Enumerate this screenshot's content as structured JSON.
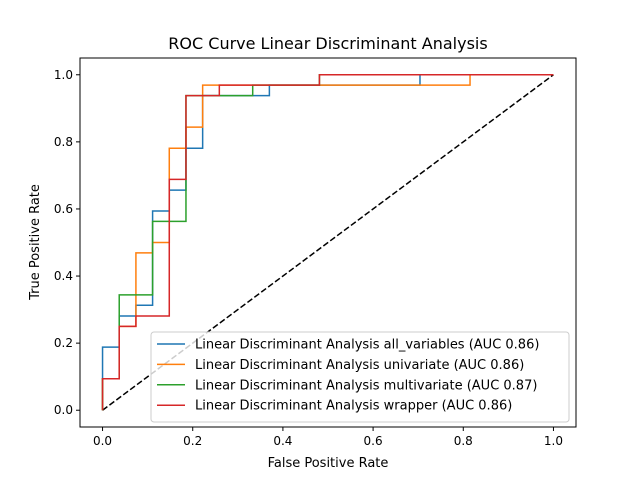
{
  "chart_data": {
    "type": "line",
    "title": "ROC Curve Linear Discriminant Analysis",
    "xlabel": "False Positive Rate",
    "ylabel": "True Positive Rate",
    "xlim": [
      -0.05,
      1.05
    ],
    "ylim": [
      -0.05,
      1.05
    ],
    "xticks": [
      "0.0",
      "0.2",
      "0.4",
      "0.6",
      "0.8",
      "1.0"
    ],
    "yticks": [
      "0.0",
      "0.2",
      "0.4",
      "0.6",
      "0.8",
      "1.0"
    ],
    "grid": false,
    "legend_position": "lower-right",
    "series": [
      {
        "name": "Linear Discriminant Analysis all_variables (AUC 0.86)",
        "color": "#1f77b4",
        "x": [
          0,
          0,
          0,
          0.037,
          0.037,
          0.074,
          0.074,
          0.111,
          0.111,
          0.148,
          0.148,
          0.148,
          0.185,
          0.185,
          0.222,
          0.222,
          0.37,
          0.37,
          0.704,
          0.704,
          1.0
        ],
        "y": [
          0,
          0.094,
          0.188,
          0.188,
          0.281,
          0.281,
          0.313,
          0.313,
          0.594,
          0.594,
          0.656,
          0.656,
          0.656,
          0.781,
          0.781,
          0.938,
          0.938,
          0.969,
          0.969,
          1.0,
          1.0
        ]
      },
      {
        "name": "Linear Discriminant Analysis univariate (AUC 0.86)",
        "color": "#ff7f0e",
        "x": [
          0,
          0,
          0.037,
          0.037,
          0.074,
          0.074,
          0.111,
          0.111,
          0.148,
          0.148,
          0.185,
          0.185,
          0.222,
          0.222,
          0.815,
          0.815,
          1.0
        ],
        "y": [
          0,
          0.094,
          0.094,
          0.25,
          0.25,
          0.469,
          0.469,
          0.5,
          0.5,
          0.781,
          0.781,
          0.844,
          0.844,
          0.969,
          0.969,
          1.0,
          1.0
        ]
      },
      {
        "name": "Linear Discriminant Analysis multivariate (AUC 0.87)",
        "color": "#2ca02c",
        "x": [
          0,
          0,
          0.037,
          0.037,
          0.111,
          0.111,
          0.185,
          0.185,
          0.259,
          0.259,
          0.333,
          0.333,
          0.481,
          0.481,
          1.0
        ],
        "y": [
          0,
          0.094,
          0.094,
          0.344,
          0.344,
          0.563,
          0.563,
          0.938,
          0.938,
          0.938,
          0.938,
          0.969,
          0.969,
          1.0,
          1.0
        ]
      },
      {
        "name": "Linear Discriminant Analysis wrapper (AUC 0.86)",
        "color": "#d62728",
        "x": [
          0,
          0,
          0.037,
          0.037,
          0.074,
          0.074,
          0.148,
          0.148,
          0.185,
          0.185,
          0.259,
          0.259,
          0.481,
          0.481,
          1.0
        ],
        "y": [
          0,
          0.094,
          0.094,
          0.25,
          0.25,
          0.281,
          0.281,
          0.688,
          0.688,
          0.938,
          0.938,
          0.969,
          0.969,
          1.0,
          1.0
        ]
      }
    ],
    "reference_line": {
      "style": "dashed",
      "color": "#000000",
      "x": [
        0,
        1
      ],
      "y": [
        0,
        1
      ]
    }
  }
}
